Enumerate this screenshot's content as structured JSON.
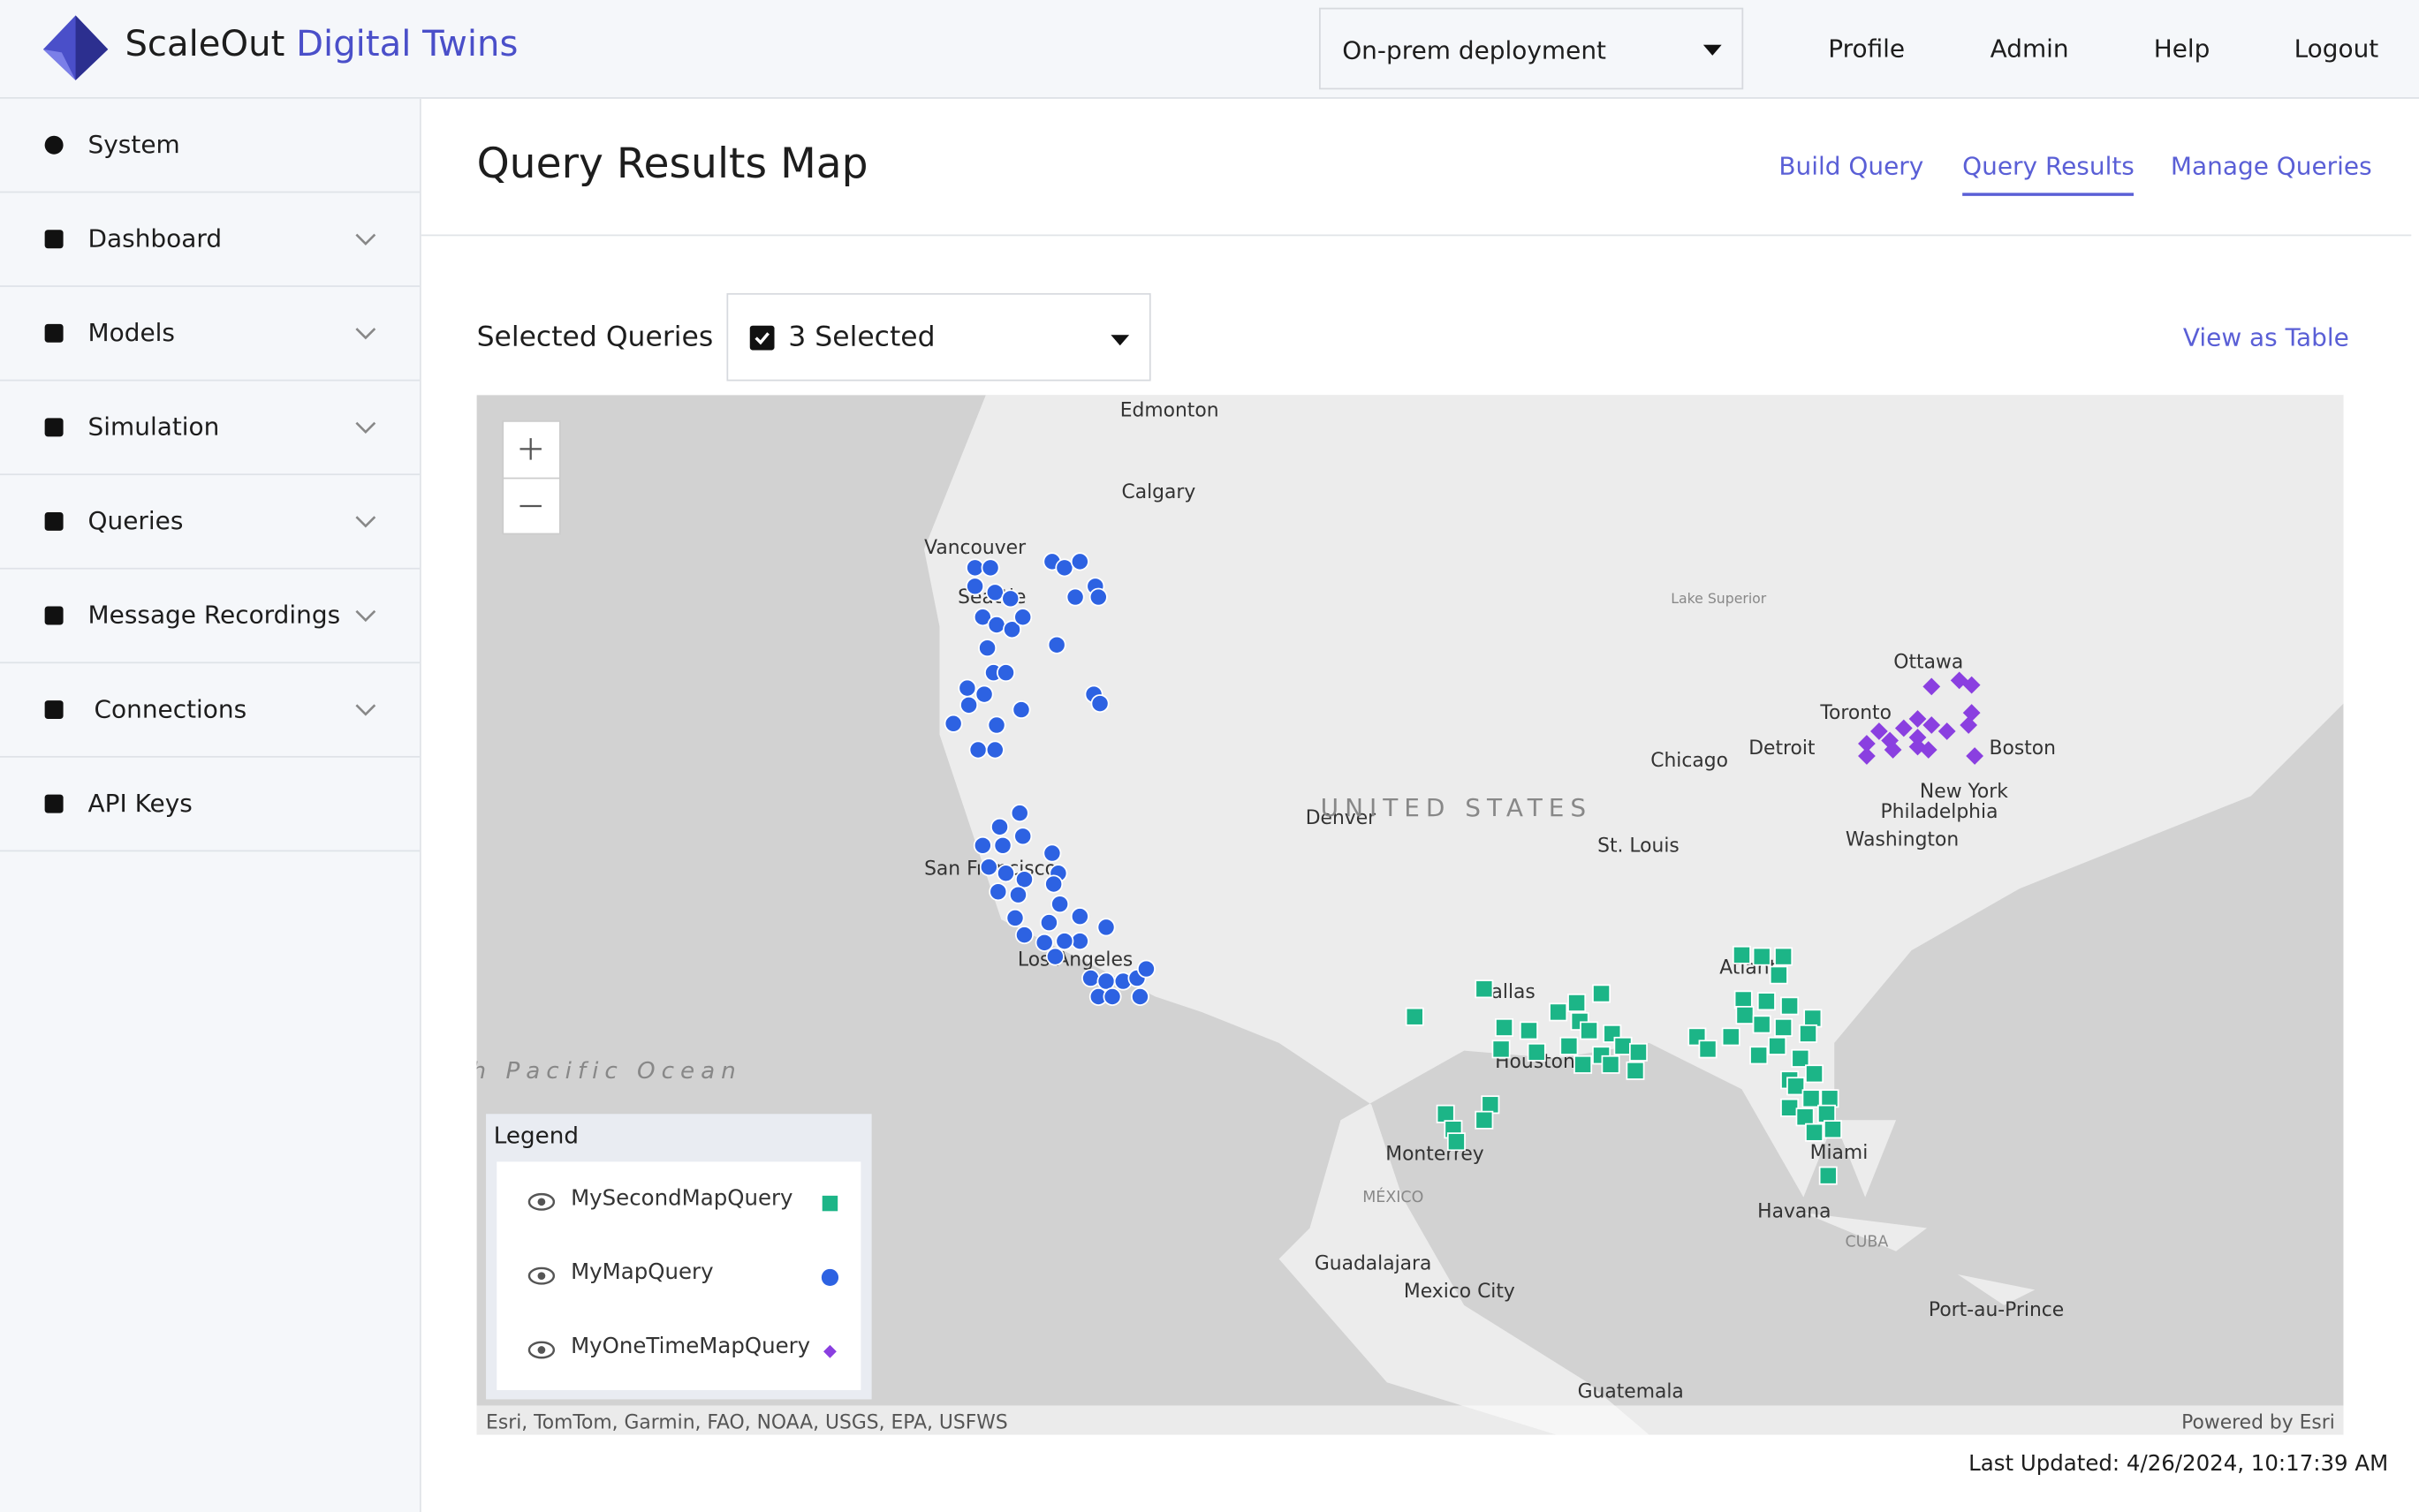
{
  "header": {
    "brand_main": "ScaleOut",
    "brand_accent": "Digital Twins",
    "deployment": "On-prem deployment",
    "nav": [
      "Profile",
      "Admin",
      "Help",
      "Logout"
    ]
  },
  "sidebar": [
    "System",
    "Dashboard",
    "Models",
    "Simulation",
    "Queries",
    "Message Recordings",
    "Connections",
    "API Keys"
  ],
  "page": {
    "title": "Query Results Map",
    "tabs": [
      "Build Query",
      "Query Results",
      "Manage Queries"
    ],
    "selected_label": "Selected Queries",
    "selected_value": "3 Selected",
    "view_table": "View as Table",
    "last_updated": "Last Updated: 4/26/2024, 10:17:39 AM"
  },
  "map": {
    "labels": [
      "Edmonton",
      "Calgary",
      "Vancouver",
      "Seattle",
      "Lake Superior",
      "Ottawa",
      "Toronto",
      "Detroit",
      "Chicago",
      "Boston",
      "New York",
      "Philadelphia",
      "Washington",
      "Denver",
      "UNITED STATES",
      "St. Louis",
      "San Francisco",
      "Los Angeles",
      "Dallas",
      "Atlanta",
      "Houston",
      "North Pacific Ocean",
      "Monterrey",
      "Miami",
      "MÉXICO",
      "Havana",
      "CUBA",
      "Guadalajara",
      "Mexico City",
      "Port-au-Prince",
      "Guatemala"
    ],
    "legend_title": "Legend",
    "legend": [
      "MySecondMapQuery",
      "MyMapQuery",
      "MyOneTimeMapQuery"
    ],
    "attribution": "Esri, TomTom, Garmin, FAO, NOAA, USGS, EPA, USFWS",
    "powered": "Powered by Esri"
  }
}
